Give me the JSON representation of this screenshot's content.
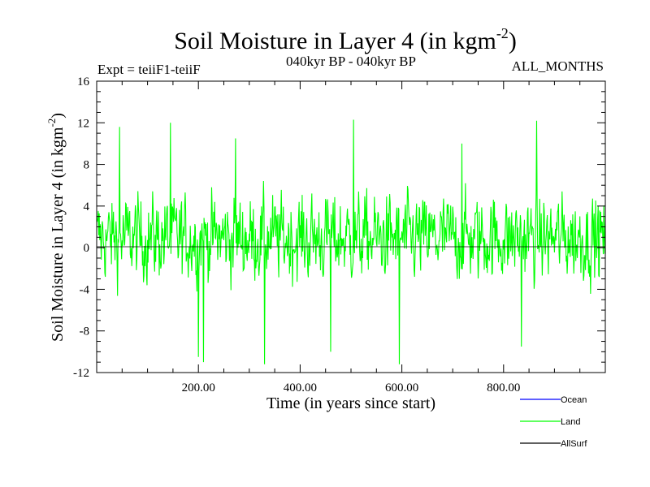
{
  "chart_data": {
    "type": "line",
    "title": {
      "main": "Soil Moisture in Layer 4 (in kgm",
      "sup": "-2",
      "close": ")"
    },
    "subtitle_left": "Expt = teiiF1-teiiF",
    "subtitle_center": "040kyr BP - 040kyr BP",
    "subtitle_right": "ALL_MONTHS",
    "xlabel": "Time (in years since start)",
    "ylabel": {
      "main": "Soil Moisture in Layer 4 (in kgm",
      "sup": "-2",
      "close": ")"
    },
    "xlim": [
      0,
      1000
    ],
    "ylim": [
      -12,
      16
    ],
    "x_ticks": [
      200,
      400,
      600,
      800
    ],
    "x_tick_labels": [
      "200.00",
      "400.00",
      "600.00",
      "800.00"
    ],
    "y_ticks": [
      -12,
      -8,
      -4,
      0,
      4,
      8,
      12,
      16
    ],
    "y_tick_labels": [
      "-12",
      "-8",
      "-4",
      "0",
      "4",
      "8",
      "12",
      "16"
    ],
    "zero_line": true,
    "series": [
      {
        "name": "Ocean",
        "color": "#0000ff",
        "values": []
      },
      {
        "name": "Land",
        "color": "#00ff00",
        "x_start": 1,
        "x_step": 1,
        "n": 1000,
        "peaks": [
          [
            45,
            11.6
          ],
          [
            145,
            12.0
          ],
          [
            273,
            10.5
          ],
          [
            505,
            12.3
          ],
          [
            865,
            12.2
          ],
          [
            718,
            10.0
          ]
        ],
        "troughs": [
          [
            200,
            -10.5
          ],
          [
            210,
            -11.0
          ],
          [
            330,
            -11.2
          ],
          [
            595,
            -11.2
          ],
          [
            460,
            -10.0
          ],
          [
            835,
            -9.5
          ]
        ],
        "typical_range": [
          -6,
          7
        ],
        "values": []
      },
      {
        "name": "AllSurf",
        "color": "#000000",
        "values": []
      }
    ],
    "legend": "bottom-right"
  }
}
